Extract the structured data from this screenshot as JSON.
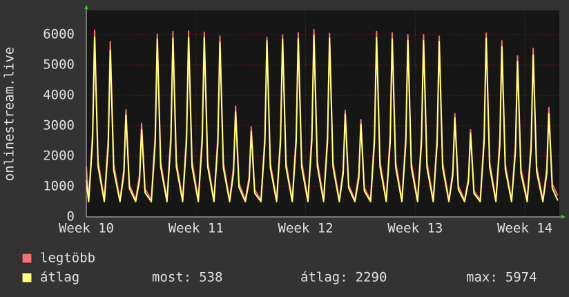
{
  "chart_data": {
    "type": "line",
    "ylabel": "onlinestream.live",
    "x": [
      0,
      0.15,
      0.4,
      0.53,
      0.75,
      1.15,
      1.4,
      1.53,
      1.75,
      2.15,
      2.4,
      2.53,
      2.75,
      3.15,
      3.4,
      3.53,
      3.75,
      4.15,
      4.4,
      4.53,
      4.75,
      5.15,
      5.4,
      5.53,
      5.75,
      6.15,
      6.4,
      6.53,
      6.75,
      7.15,
      7.4,
      7.53,
      7.75,
      8.15,
      8.4,
      8.53,
      8.75,
      9.15,
      9.4,
      9.53,
      9.75,
      10.15,
      10.4,
      10.53,
      10.75,
      11.15,
      11.4,
      11.53,
      11.75,
      12.15,
      12.4,
      12.53,
      12.75,
      13.15,
      13.4,
      13.53,
      13.75,
      14.15,
      14.4,
      14.53,
      14.75,
      15.15,
      15.4,
      15.53,
      15.75,
      16.15,
      16.4,
      16.53,
      16.75,
      17.15,
      17.4,
      17.53,
      17.75,
      18.15,
      18.4,
      18.53,
      18.75,
      19.15,
      19.4,
      19.53,
      19.75,
      20.15,
      20.4,
      20.53,
      20.75,
      21.15,
      21.4,
      21.53,
      21.75,
      22.15,
      22.4,
      22.53,
      22.75,
      23.15,
      23.4,
      23.53,
      23.75,
      24.15,
      24.4,
      24.53,
      24.75,
      25.15,
      25.4,
      25.53,
      25.75,
      26.15,
      26.4,
      26.53,
      26.75,
      27.15,
      27.4,
      27.53,
      27.75,
      28.15,
      28.4,
      28.53,
      28.75,
      29.15,
      29.4,
      29.53,
      29.75,
      30.1
    ],
    "series": [
      {
        "name": "legtöbb",
        "color": "#f07272",
        "values": [
          1650,
          560,
          2770,
          6150,
          1850,
          560,
          2600,
          5780,
          1730,
          560,
          1590,
          3530,
          1060,
          560,
          1390,
          3080,
          920,
          560,
          2710,
          6020,
          1810,
          560,
          2750,
          6100,
          1830,
          560,
          2750,
          6120,
          1840,
          560,
          2740,
          6080,
          1820,
          560,
          2680,
          5950,
          1790,
          560,
          1640,
          3650,
          1100,
          560,
          1330,
          2960,
          890,
          560,
          2660,
          5910,
          1770,
          560,
          2700,
          5990,
          1800,
          560,
          2730,
          6060,
          1820,
          560,
          2780,
          6170,
          1850,
          560,
          2720,
          6040,
          1810,
          560,
          1580,
          3510,
          1050,
          560,
          1440,
          3200,
          960,
          560,
          2750,
          6100,
          1830,
          560,
          2730,
          6060,
          1820,
          560,
          2700,
          6000,
          1800,
          560,
          2700,
          6000,
          1800,
          560,
          2680,
          5950,
          1790,
          560,
          1530,
          3400,
          1020,
          560,
          1290,
          2870,
          860,
          560,
          2720,
          6050,
          1820,
          560,
          2610,
          5800,
          1740,
          560,
          2390,
          5300,
          1590,
          560,
          2500,
          5550,
          1670,
          560,
          1620,
          3600,
          1080,
          700
        ]
      },
      {
        "name": "átlag",
        "color": "#ffff80",
        "values": [
          1200,
          500,
          2490,
          5920,
          1660,
          500,
          2300,
          5480,
          1530,
          500,
          1410,
          3350,
          940,
          500,
          1210,
          2870,
          800,
          500,
          2460,
          5850,
          1640,
          500,
          2470,
          5880,
          1650,
          500,
          2480,
          5900,
          1650,
          500,
          2480,
          5900,
          1650,
          500,
          2420,
          5750,
          1610,
          500,
          1450,
          3450,
          970,
          500,
          1180,
          2800,
          780,
          500,
          2440,
          5800,
          1620,
          500,
          2460,
          5850,
          1640,
          500,
          2470,
          5870,
          1640,
          500,
          2510,
          5974,
          1670,
          500,
          2470,
          5880,
          1650,
          500,
          1420,
          3380,
          950,
          500,
          1280,
          3050,
          850,
          500,
          2480,
          5900,
          1650,
          500,
          2460,
          5850,
          1640,
          500,
          2440,
          5810,
          1630,
          500,
          2440,
          5800,
          1620,
          500,
          2430,
          5780,
          1620,
          500,
          1370,
          3260,
          910,
          500,
          1160,
          2750,
          770,
          500,
          2470,
          5880,
          1650,
          500,
          2350,
          5600,
          1570,
          500,
          2150,
          5120,
          1430,
          500,
          2230,
          5320,
          1490,
          500,
          1430,
          3400,
          950,
          538
        ]
      }
    ],
    "xlim": [
      0,
      30.2
    ],
    "xticks": [
      {
        "value": 0,
        "label": "Week 10"
      },
      {
        "value": 7,
        "label": "Week 11"
      },
      {
        "value": 14,
        "label": "Week 12"
      },
      {
        "value": 21,
        "label": "Week 13"
      },
      {
        "value": 28,
        "label": "Week 14"
      }
    ],
    "ylim": [
      0,
      6800
    ],
    "yticks": [
      0,
      1000,
      2000,
      3000,
      4000,
      5000,
      6000
    ],
    "grid": true,
    "stats": [
      {
        "label": "most:",
        "value": 538
      },
      {
        "label": "átlag:",
        "value": 2290
      },
      {
        "label": "max:",
        "value": 5974
      }
    ]
  }
}
